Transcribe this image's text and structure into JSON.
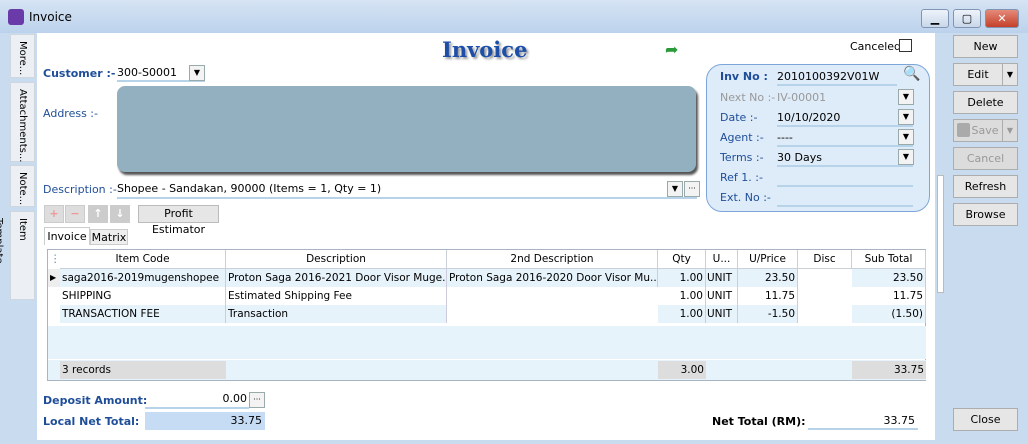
{
  "window": {
    "title": "Invoice",
    "minimize": "▁",
    "maximize": "▢",
    "close": "✕"
  },
  "side_tabs": [
    "More...",
    "Attachments...",
    "Note...",
    "Item Template..."
  ],
  "form": {
    "title": "Invoice",
    "canceled_label": "Canceled",
    "canceled": false,
    "customer_label": "Customer :-",
    "customer_value": "300-S0001",
    "address_label": "Address :-",
    "description_label": "Description :-",
    "description_value": "Shopee - Sandakan, 90000 (Items = 1, Qty = 1)"
  },
  "panel": {
    "inv_no_label": "Inv No :",
    "inv_no": "2010100392V01W",
    "next_no_label": "Next No :-",
    "next_no": "IV-00001",
    "date_label": "Date :-",
    "date": "10/10/2020",
    "agent_label": "Agent :-",
    "agent": "----",
    "terms_label": "Terms :-",
    "terms": "30 Days",
    "ref1_label": "Ref 1. :-",
    "ref1": "",
    "ext_no_label": "Ext. No :-",
    "ext_no": ""
  },
  "toolbar": {
    "add": "+",
    "remove": "−",
    "up": "↑",
    "down": "↓",
    "profit_estimator": "Profit Estimator"
  },
  "tabs": [
    "Invoice",
    "Matrix"
  ],
  "grid": {
    "columns": [
      "Item Code",
      "Description",
      "2nd Description",
      "Qty",
      "U...",
      "U/Price",
      "Disc",
      "Sub Total"
    ],
    "rows": [
      [
        "saga2016-2019mugenshopee",
        "Proton Saga 2016-2021 Door Visor Muge...",
        "Proton Saga 2016-2020 Door Visor Mu...",
        "1.00",
        "UNIT",
        "23.50",
        "",
        "23.50"
      ],
      [
        "SHIPPING",
        "Estimated Shipping Fee",
        "",
        "1.00",
        "UNIT",
        "11.75",
        "",
        "11.75"
      ],
      [
        "TRANSACTION FEE",
        "Transaction",
        "",
        "1.00",
        "UNIT",
        "-1.50",
        "",
        "(1.50)"
      ]
    ],
    "footer": {
      "records": "3 records",
      "qty": "3.00",
      "subtotal": "33.75"
    }
  },
  "totals": {
    "deposit_label": "Deposit Amount:",
    "deposit": "0.00",
    "local_net_label": "Local Net Total:",
    "local_net": "33.75",
    "net_label": "Net Total (RM):",
    "net": "33.75"
  },
  "actions": {
    "new": "New",
    "edit": "Edit",
    "delete": "Delete",
    "save": "Save",
    "cancel": "Cancel",
    "refresh": "Refresh",
    "browse": "Browse",
    "close": "Close"
  },
  "colors": {
    "label": "#1f4e99",
    "panel": "#deebf8",
    "address": "#93b0c0"
  }
}
